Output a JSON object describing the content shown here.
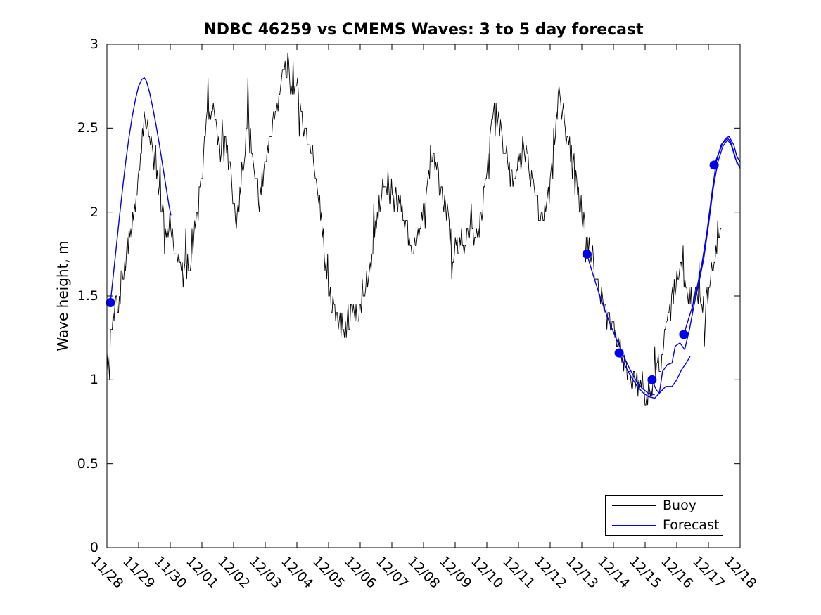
{
  "title": "NDBC 46259 vs CMEMS Waves: 3 to 5 day forecast",
  "y_axis": {
    "label": "Wave height, m",
    "min": 0,
    "max": 3,
    "ticks": [
      {
        "value": 0,
        "label": "0"
      },
      {
        "value": 0.5,
        "label": "0.5"
      },
      {
        "value": 1,
        "label": "1"
      },
      {
        "value": 1.5,
        "label": "1.5"
      },
      {
        "value": 2,
        "label": "2"
      },
      {
        "value": 2.5,
        "label": "2.5"
      },
      {
        "value": 3,
        "label": "3"
      }
    ]
  },
  "x_axis": {
    "tick_labels": [
      "11/28",
      "11/29",
      "11/30",
      "12/01",
      "12/02",
      "12/03",
      "12/04",
      "12/05",
      "12/06",
      "12/07",
      "12/08",
      "12/09",
      "12/10",
      "12/11",
      "12/12",
      "12/13",
      "12/14",
      "12/15",
      "12/16",
      "12/17",
      "12/18"
    ]
  },
  "legend": {
    "entries": [
      {
        "label": "Buoy",
        "color": "#000000"
      },
      {
        "label": "Forecast",
        "color": "#0000ee"
      }
    ],
    "position": "south-east-inside"
  },
  "colors": {
    "buoy": "#000000",
    "forecast": "#0000ee",
    "axis": "#000000",
    "background": "#ffffff"
  },
  "chart_data": {
    "type": "line",
    "title": "NDBC 46259 vs CMEMS Waves: 3 to 5 day forecast",
    "xlabel": "",
    "ylabel": "Wave height, m",
    "ylim": [
      0,
      3
    ],
    "x_days_range": [
      0,
      20
    ],
    "x_tick_labels": [
      "11/28",
      "11/29",
      "11/30",
      "12/01",
      "12/02",
      "12/03",
      "12/04",
      "12/05",
      "12/06",
      "12/07",
      "12/08",
      "12/09",
      "12/10",
      "12/11",
      "12/12",
      "12/13",
      "12/14",
      "12/15",
      "12/16",
      "12/17",
      "12/18"
    ],
    "grid": false,
    "legend_position": "lower right",
    "series": [
      {
        "name": "Buoy",
        "color": "#000000",
        "style": "noisy-observations",
        "anchors": [
          [
            0,
            1.1
          ],
          [
            0.08,
            1.18
          ],
          [
            0.15,
            1.3
          ],
          [
            0.3,
            1.42
          ],
          [
            0.45,
            1.55
          ],
          [
            0.6,
            1.7
          ],
          [
            0.75,
            1.88
          ],
          [
            0.9,
            2.02
          ],
          [
            1.0,
            2.18
          ],
          [
            1.1,
            2.42
          ],
          [
            1.18,
            2.58
          ],
          [
            1.3,
            2.5
          ],
          [
            1.45,
            2.35
          ],
          [
            1.6,
            2.18
          ],
          [
            1.75,
            2.02
          ],
          [
            1.9,
            1.9
          ],
          [
            2.0,
            1.93
          ],
          [
            2.1,
            1.86
          ],
          [
            2.2,
            1.76
          ],
          [
            2.3,
            1.68
          ],
          [
            2.45,
            1.62
          ],
          [
            2.6,
            1.7
          ],
          [
            2.72,
            1.85
          ],
          [
            2.85,
            1.96
          ],
          [
            3.0,
            2.2
          ],
          [
            3.1,
            2.45
          ],
          [
            3.2,
            2.58
          ],
          [
            3.3,
            2.52
          ],
          [
            3.33,
            2.6
          ],
          [
            3.35,
            2.78
          ],
          [
            3.37,
            2.6
          ],
          [
            3.45,
            2.5
          ],
          [
            3.6,
            2.36
          ],
          [
            3.75,
            2.42
          ],
          [
            3.9,
            2.25
          ],
          [
            4.0,
            2.05
          ],
          [
            4.1,
            1.92
          ],
          [
            4.2,
            2.1
          ],
          [
            4.3,
            2.3
          ],
          [
            4.4,
            2.45
          ],
          [
            4.43,
            2.55
          ],
          [
            4.45,
            2.79
          ],
          [
            4.47,
            2.55
          ],
          [
            4.6,
            2.36
          ],
          [
            4.7,
            2.2
          ],
          [
            4.8,
            2.07
          ],
          [
            4.9,
            2.16
          ],
          [
            5.0,
            2.3
          ],
          [
            5.15,
            2.46
          ],
          [
            5.3,
            2.6
          ],
          [
            5.45,
            2.72
          ],
          [
            5.55,
            2.84
          ],
          [
            5.67,
            2.9
          ],
          [
            5.69,
            2.99
          ],
          [
            5.71,
            2.9
          ],
          [
            5.8,
            2.76
          ],
          [
            5.9,
            2.72
          ],
          [
            6.0,
            2.72
          ],
          [
            6.1,
            2.6
          ],
          [
            6.25,
            2.45
          ],
          [
            6.4,
            2.35
          ],
          [
            6.55,
            2.28
          ],
          [
            6.7,
            2.1
          ],
          [
            6.85,
            1.8
          ],
          [
            7.0,
            1.55
          ],
          [
            7.15,
            1.42
          ],
          [
            7.3,
            1.37
          ],
          [
            7.55,
            1.32
          ],
          [
            7.7,
            1.38
          ],
          [
            7.85,
            1.42
          ],
          [
            8.0,
            1.4
          ],
          [
            8.2,
            1.55
          ],
          [
            8.4,
            1.8
          ],
          [
            8.6,
            2.05
          ],
          [
            8.72,
            2.18
          ],
          [
            8.77,
            2.28
          ],
          [
            8.82,
            2.18
          ],
          [
            8.95,
            2.12
          ],
          [
            9.1,
            2.08
          ],
          [
            9.3,
            2.05
          ],
          [
            9.5,
            1.9
          ],
          [
            9.7,
            1.78
          ],
          [
            9.85,
            1.86
          ],
          [
            10.0,
            2.0
          ],
          [
            10.15,
            2.2
          ],
          [
            10.28,
            2.3
          ],
          [
            10.3,
            2.4
          ],
          [
            10.32,
            2.3
          ],
          [
            10.45,
            2.2
          ],
          [
            10.6,
            2.05
          ],
          [
            10.75,
            2.0
          ],
          [
            10.9,
            1.75
          ],
          [
            11.05,
            1.82
          ],
          [
            11.2,
            1.86
          ],
          [
            11.35,
            1.82
          ],
          [
            11.5,
            1.9
          ],
          [
            11.65,
            1.85
          ],
          [
            11.8,
            1.96
          ],
          [
            11.9,
            2.1
          ],
          [
            12.0,
            2.3
          ],
          [
            12.1,
            2.5
          ],
          [
            12.2,
            2.58
          ],
          [
            12.25,
            2.69
          ],
          [
            12.3,
            2.56
          ],
          [
            12.45,
            2.5
          ],
          [
            12.6,
            2.36
          ],
          [
            12.75,
            2.2
          ],
          [
            12.9,
            2.18
          ],
          [
            13.05,
            2.3
          ],
          [
            13.15,
            2.42
          ],
          [
            13.3,
            2.32
          ],
          [
            13.45,
            2.15
          ],
          [
            13.6,
            2.05
          ],
          [
            13.75,
            1.98
          ],
          [
            13.9,
            2.0
          ],
          [
            14.0,
            2.2
          ],
          [
            14.15,
            2.5
          ],
          [
            14.27,
            2.65
          ],
          [
            14.29,
            2.79
          ],
          [
            14.31,
            2.65
          ],
          [
            14.45,
            2.56
          ],
          [
            14.6,
            2.4
          ],
          [
            14.75,
            2.22
          ],
          [
            14.9,
            2.1
          ],
          [
            15.0,
            2.0
          ],
          [
            15.2,
            1.84
          ],
          [
            15.4,
            1.66
          ],
          [
            15.55,
            1.53
          ],
          [
            15.7,
            1.41
          ],
          [
            15.9,
            1.33
          ],
          [
            16.1,
            1.26
          ],
          [
            16.3,
            1.14
          ],
          [
            16.5,
            1.06
          ],
          [
            16.7,
            0.99
          ],
          [
            16.9,
            0.94
          ],
          [
            17.05,
            0.92
          ],
          [
            17.15,
            0.91
          ],
          [
            17.3,
            1.0
          ],
          [
            17.5,
            1.13
          ],
          [
            17.7,
            1.3
          ],
          [
            17.85,
            1.46
          ],
          [
            17.95,
            1.6
          ],
          [
            18.05,
            1.66
          ],
          [
            18.15,
            1.66
          ],
          [
            18.3,
            1.52
          ],
          [
            18.45,
            1.47
          ],
          [
            18.6,
            1.53
          ],
          [
            18.75,
            1.46
          ],
          [
            18.9,
            1.4
          ],
          [
            19.0,
            1.5
          ],
          [
            19.1,
            1.63
          ],
          [
            19.2,
            1.74
          ],
          [
            19.3,
            1.84
          ],
          [
            19.42,
            1.9
          ]
        ],
        "noise": {
          "seed": 7,
          "step_days": 0.028,
          "base": 0.16,
          "spike_p": 0.1,
          "spike_amp": 0.35,
          "quantize": 0.05
        }
      },
      {
        "name": "Forecast",
        "color": "#0000ee",
        "style": "smooth-segments",
        "segments": [
          [
            [
              0.11,
              1.46
            ],
            [
              0.2,
              1.62
            ],
            [
              0.3,
              1.8
            ],
            [
              0.4,
              1.98
            ],
            [
              0.5,
              2.15
            ],
            [
              0.6,
              2.31
            ],
            [
              0.7,
              2.45
            ],
            [
              0.8,
              2.57
            ],
            [
              0.9,
              2.67
            ],
            [
              1.0,
              2.75
            ],
            [
              1.1,
              2.79
            ],
            [
              1.18,
              2.8
            ],
            [
              1.25,
              2.78
            ],
            [
              1.35,
              2.71
            ],
            [
              1.45,
              2.62
            ],
            [
              1.55,
              2.52
            ],
            [
              1.65,
              2.41
            ],
            [
              1.75,
              2.29
            ],
            [
              1.85,
              2.17
            ],
            [
              1.95,
              2.05
            ],
            [
              2.02,
              1.98
            ]
          ],
          [
            [
              15.16,
              1.75
            ],
            [
              15.3,
              1.66
            ],
            [
              15.5,
              1.54
            ],
            [
              15.7,
              1.43
            ],
            [
              15.9,
              1.33
            ],
            [
              16.1,
              1.24
            ],
            [
              16.3,
              1.15
            ],
            [
              16.5,
              1.07
            ],
            [
              16.7,
              1.0
            ],
            [
              16.9,
              0.95
            ],
            [
              17.1,
              0.92
            ],
            [
              17.3,
              0.91
            ]
          ],
          [
            [
              16.18,
              1.16
            ],
            [
              16.35,
              1.09
            ],
            [
              16.55,
              1.02
            ],
            [
              16.75,
              0.96
            ],
            [
              16.95,
              0.92
            ],
            [
              17.1,
              0.9
            ],
            [
              17.3,
              0.89
            ],
            [
              17.5,
              0.93
            ],
            [
              17.65,
              0.96
            ],
            [
              17.85,
              0.96
            ],
            [
              18.0,
              1.0
            ],
            [
              18.15,
              1.06
            ],
            [
              18.3,
              1.1
            ],
            [
              18.42,
              1.14
            ]
          ],
          [
            [
              17.22,
              1.0
            ],
            [
              17.35,
              0.94
            ],
            [
              17.45,
              0.92
            ],
            [
              17.55,
              1.05
            ],
            [
              17.7,
              1.09
            ],
            [
              17.85,
              1.1
            ],
            [
              17.95,
              1.2
            ],
            [
              18.1,
              1.22
            ],
            [
              18.25,
              1.18
            ],
            [
              18.4,
              1.3
            ],
            [
              18.55,
              1.45
            ],
            [
              18.7,
              1.58
            ],
            [
              18.85,
              1.72
            ],
            [
              19.0,
              1.92
            ],
            [
              19.15,
              2.14
            ],
            [
              19.3,
              2.3
            ],
            [
              19.45,
              2.39
            ],
            [
              19.6,
              2.43
            ],
            [
              19.72,
              2.4
            ],
            [
              19.85,
              2.32
            ],
            [
              20.0,
              2.26
            ]
          ],
          [
            [
              18.22,
              1.27
            ],
            [
              18.35,
              1.35
            ],
            [
              18.5,
              1.44
            ],
            [
              18.65,
              1.56
            ],
            [
              18.8,
              1.7
            ],
            [
              18.95,
              1.88
            ],
            [
              19.1,
              2.1
            ],
            [
              19.25,
              2.3
            ],
            [
              19.4,
              2.4
            ],
            [
              19.55,
              2.44
            ],
            [
              19.65,
              2.45
            ],
            [
              19.8,
              2.4
            ],
            [
              19.9,
              2.33
            ],
            [
              20.0,
              2.3
            ]
          ],
          [
            [
              19.18,
              2.28
            ],
            [
              19.3,
              2.34
            ],
            [
              19.45,
              2.41
            ],
            [
              19.6,
              2.44
            ],
            [
              19.7,
              2.42
            ],
            [
              19.8,
              2.36
            ],
            [
              19.9,
              2.29
            ],
            [
              20.0,
              2.27
            ]
          ]
        ]
      }
    ],
    "forecast_start_markers": [
      [
        0.11,
        1.46
      ],
      [
        15.16,
        1.75
      ],
      [
        16.18,
        1.16
      ],
      [
        17.22,
        1.0
      ],
      [
        18.22,
        1.27
      ],
      [
        19.18,
        2.28
      ]
    ],
    "marker_radius_px": 6.5
  }
}
